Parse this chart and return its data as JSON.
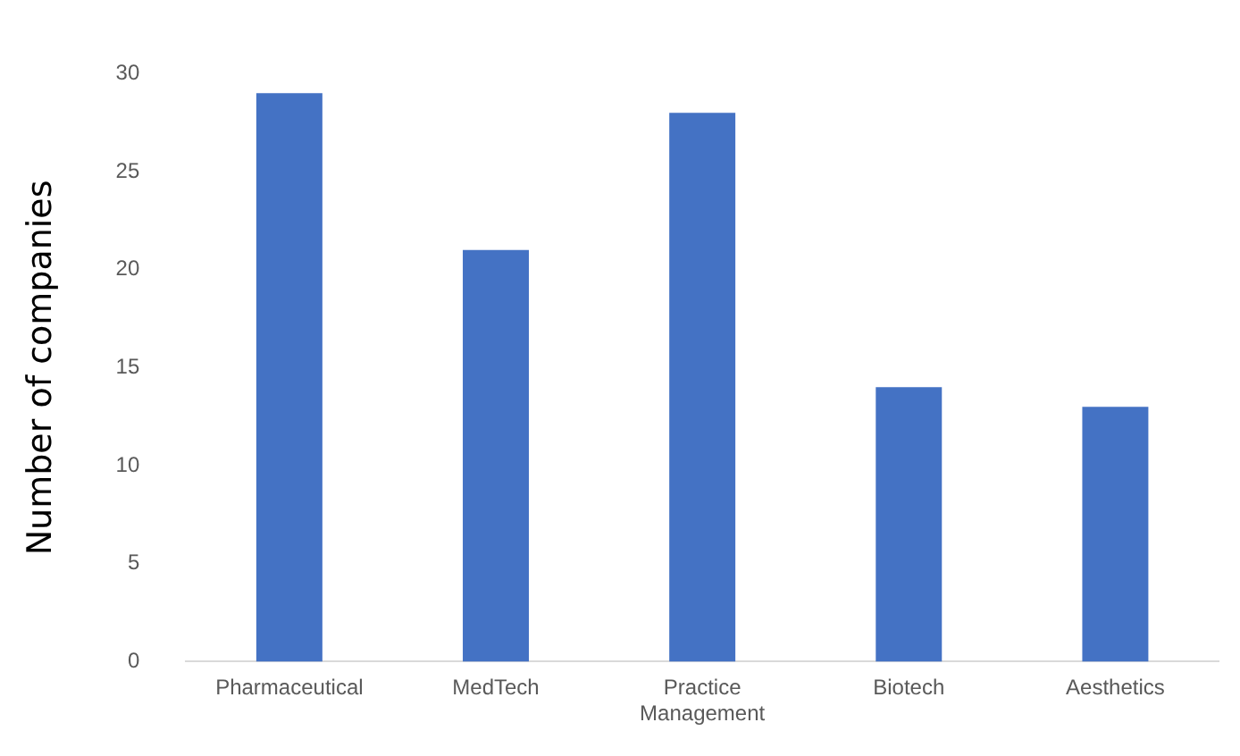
{
  "chart_data": {
    "type": "bar",
    "ylabel": "Number of companies",
    "categories": [
      "Pharmaceutical",
      "MedTech",
      "Practice Management",
      "Biotech",
      "Aesthetics"
    ],
    "values": [
      29,
      21,
      28,
      14,
      13
    ],
    "color": "#4472c4",
    "ylim": [
      0,
      30
    ],
    "yticks": [
      0,
      5,
      10,
      15,
      20,
      25,
      30
    ],
    "grid": false,
    "legend": false
  }
}
